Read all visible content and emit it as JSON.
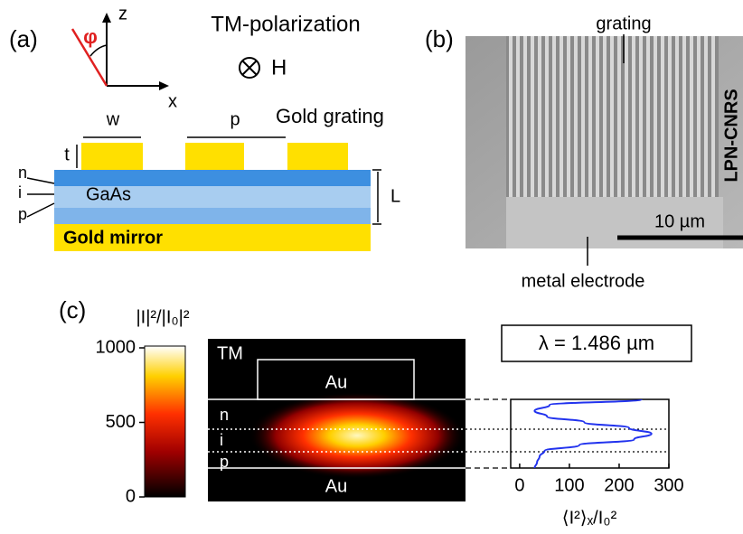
{
  "panel_a": {
    "label": "(a)",
    "axis_z": "z",
    "axis_x": "x",
    "angle": "φ",
    "polarization": "TM-polarization",
    "field": "H",
    "grating_label": "Gold grating",
    "width": "w",
    "period": "p",
    "thickness": "t",
    "layers": [
      "n",
      "i",
      "p"
    ],
    "slab": "GaAs",
    "slab_thickness": "L",
    "mirror": "Gold mirror"
  },
  "panel_b": {
    "label": "(b)",
    "grating": "grating",
    "watermark": "LPN-CNRS",
    "scale_bar": "10 µm",
    "electrode": "metal electrode"
  },
  "panel_c": {
    "label": "(c)",
    "colorbar_title": "|I|²/|I₀|²",
    "colorbar": {
      "lim": [
        0,
        1000
      ],
      "ticks": [
        0,
        500,
        1000
      ]
    },
    "map": {
      "polarization": "TM",
      "top": "Au",
      "bottom": "Au",
      "layers": [
        "n",
        "i",
        "p"
      ]
    },
    "wavelength": "λ = 1.486 µm",
    "profile": {
      "xlim": [
        -18,
        300
      ],
      "xticks": [
        0,
        100,
        200,
        300
      ],
      "xlabel": "⟨I²⟩ₓ/I₀²",
      "color": "#2233ee",
      "values": [
        245,
        60,
        30,
        55,
        130,
        220,
        265,
        230,
        120,
        50,
        40,
        35,
        30
      ]
    }
  }
}
